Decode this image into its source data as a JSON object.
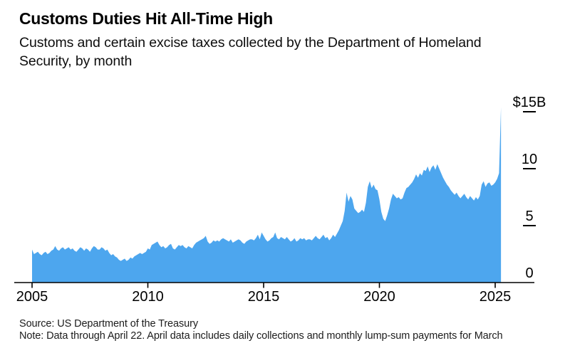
{
  "header": {
    "title": "Customs Duties Hit All-Time High",
    "subtitle_lines": [
      "Customs and certain excise taxes collected by the Department of Homeland",
      "Security, by month"
    ]
  },
  "footer": {
    "source": "Source: US Department of the Treasury",
    "note": "Note: Data through April 22. April data includes daily collections and monthly lump-sum payments for March"
  },
  "chart_data": {
    "type": "area",
    "title": "Customs Duties Hit All-Time High",
    "unit": "billions of US dollars per month",
    "frequency": "monthly",
    "x_start_year": 2005,
    "x_start_month": 1,
    "x_end_year": 2025,
    "x_end_month": 4,
    "x_ticks": [
      2005,
      2010,
      2015,
      2020,
      2025
    ],
    "y_ticks": [
      {
        "value": 0,
        "label": "0"
      },
      {
        "value": 5,
        "label": "5"
      },
      {
        "value": 10,
        "label": "10"
      },
      {
        "value": 15,
        "label": "$15B"
      }
    ],
    "ylim": [
      0,
      15.5
    ],
    "grid": false,
    "legend": "none",
    "area_color": "#4DA6EE",
    "axis_color": "#000000",
    "values": [
      2.9,
      2.5,
      2.6,
      2.7,
      2.5,
      2.4,
      2.6,
      2.7,
      2.5,
      2.6,
      2.8,
      2.9,
      3.2,
      2.9,
      2.8,
      3.0,
      3.1,
      2.9,
      3.0,
      3.1,
      2.9,
      3.0,
      2.8,
      2.7,
      2.9,
      3.1,
      3.0,
      2.8,
      3.0,
      2.9,
      2.7,
      3.0,
      3.2,
      3.1,
      2.9,
      2.9,
      3.1,
      3.0,
      2.8,
      2.9,
      2.6,
      2.4,
      2.5,
      2.3,
      2.2,
      2.0,
      1.9,
      2.0,
      2.1,
      1.9,
      2.0,
      2.2,
      2.1,
      2.3,
      2.4,
      2.5,
      2.6,
      2.5,
      2.6,
      2.7,
      3.0,
      2.9,
      3.3,
      3.4,
      3.5,
      3.6,
      3.3,
      3.1,
      3.2,
      3.0,
      3.1,
      3.3,
      3.4,
      3.0,
      2.9,
      3.1,
      3.3,
      3.2,
      3.3,
      3.1,
      3.0,
      3.2,
      3.1,
      3.0,
      3.3,
      3.5,
      3.6,
      3.7,
      3.8,
      3.9,
      4.1,
      3.6,
      3.4,
      3.5,
      3.7,
      3.6,
      3.7,
      3.6,
      3.8,
      3.9,
      3.8,
      3.7,
      3.6,
      3.8,
      3.5,
      3.6,
      3.7,
      3.8,
      3.7,
      3.5,
      3.4,
      3.6,
      3.7,
      3.8,
      3.8,
      3.7,
      3.9,
      4.2,
      3.8,
      4.4,
      4.1,
      3.8,
      3.6,
      3.7,
      3.9,
      4.0,
      4.4,
      3.9,
      3.8,
      4.0,
      3.9,
      3.8,
      4.0,
      3.8,
      3.6,
      3.7,
      3.9,
      3.6,
      3.7,
      3.9,
      3.8,
      3.9,
      3.7,
      3.8,
      3.8,
      3.7,
      3.9,
      4.1,
      3.9,
      3.8,
      4.0,
      4.2,
      3.9,
      4.0,
      3.7,
      3.9,
      4.2,
      4.0,
      4.3,
      4.6,
      5.0,
      5.4,
      6.3,
      7.9,
      7.1,
      7.6,
      7.3,
      6.5,
      6.3,
      6.1,
      6.2,
      6.4,
      6.2,
      7.0,
      8.4,
      8.9,
      8.3,
      8.6,
      8.2,
      8.1,
      7.3,
      6.2,
      5.6,
      5.4,
      5.9,
      6.5,
      7.3,
      7.8,
      7.6,
      7.4,
      7.5,
      7.3,
      7.4,
      7.9,
      8.3,
      8.4,
      8.6,
      8.8,
      9.1,
      9.5,
      9.2,
      9.6,
      9.4,
      9.9,
      9.8,
      10.2,
      9.7,
      10.1,
      10.3,
      9.9,
      10.4,
      10.0,
      9.6,
      9.2,
      8.9,
      8.6,
      8.4,
      8.1,
      7.9,
      7.7,
      7.9,
      7.6,
      7.4,
      7.6,
      7.8,
      7.5,
      7.3,
      7.6,
      7.4,
      7.2,
      7.5,
      7.3,
      7.6,
      8.6,
      8.9,
      8.4,
      8.7,
      8.8,
      8.5,
      8.6,
      8.8,
      9.1,
      9.6,
      15.4
    ]
  }
}
